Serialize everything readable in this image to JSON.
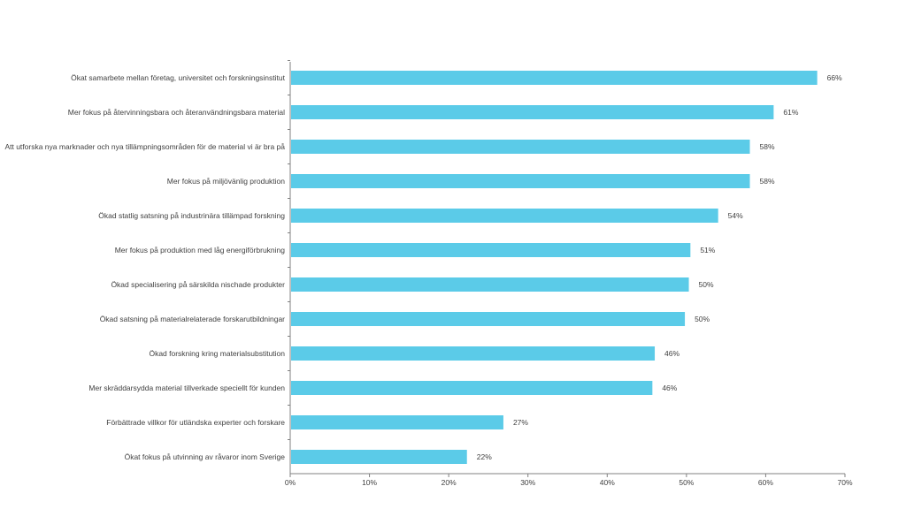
{
  "chart_data": {
    "type": "bar",
    "orientation": "horizontal",
    "title": "",
    "xlabel": "",
    "ylabel": "",
    "xlim": [
      0,
      70
    ],
    "value_unit": "%",
    "grid": false,
    "legend": "none",
    "bar_color": "#5BCBE8",
    "categories": [
      "Ökat samarbete mellan företag, universitet och forskningsinstitut",
      "Mer fokus på återvinningsbara och återanvändningsbara material",
      "Att utforska nya marknader och nya tillämpningsområden för de material vi är bra på",
      "Mer fokus på miljövänlig produktion",
      "Ökad statlig satsning på industrinära tillämpad forskning",
      "Mer fokus på produktion med låg energiförbrukning",
      "Ökad specialisering på särskilda nischade produkter",
      "Ökad satsning på materialrelaterade forskarutbildningar",
      "Ökad forskning kring materialsubstitution",
      "Mer skräddarsydda material tillverkade speciellt för kunden",
      "Förbättrade villkor för utländska experter och forskare",
      "Ökat fokus på utvinning av råvaror inom Sverige"
    ],
    "values": [
      66.5,
      61,
      58,
      58,
      54,
      50.5,
      50.3,
      49.8,
      46,
      45.7,
      26.9,
      22.3
    ],
    "value_labels": [
      "66%",
      "61%",
      "58%",
      "58%",
      "54%",
      "51%",
      "50%",
      "50%",
      "46%",
      "46%",
      "27%",
      "22%"
    ],
    "x_ticks": [
      0,
      10,
      20,
      30,
      40,
      50,
      60,
      70
    ],
    "x_tick_labels": [
      "0%",
      "10%",
      "20%",
      "30%",
      "40%",
      "50%",
      "60%",
      "70%"
    ]
  }
}
